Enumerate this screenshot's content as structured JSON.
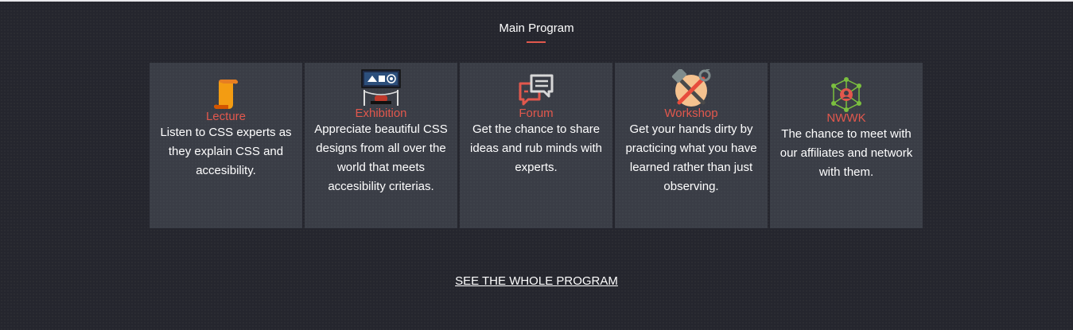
{
  "section": {
    "title": "Main Program"
  },
  "cards": [
    {
      "icon": "scroll-icon",
      "title": "Lecture",
      "text": "Listen to CSS experts as they explain CSS and accesibility."
    },
    {
      "icon": "exhibition-board-icon",
      "title": "Exhibition",
      "text": "Appreciate beautiful CSS designs from all over the world that meets accesibility criterias."
    },
    {
      "icon": "chat-bubbles-icon",
      "title": "Forum",
      "text": "Get the chance to share ideas and rub minds with experts."
    },
    {
      "icon": "tools-wrench-hammer-icon",
      "title": "Workshop",
      "text": "Get your hands dirty by practicing what you have learned rather than just observing."
    },
    {
      "icon": "network-icon",
      "title": "NWWK",
      "text": "The chance to meet with our affiliates and network with them."
    }
  ],
  "cta": {
    "label": "SEE THE WHOLE PROGRAM"
  },
  "colors": {
    "accent": "#e2584d",
    "background": "#25262e",
    "card": "#3a3d46"
  }
}
